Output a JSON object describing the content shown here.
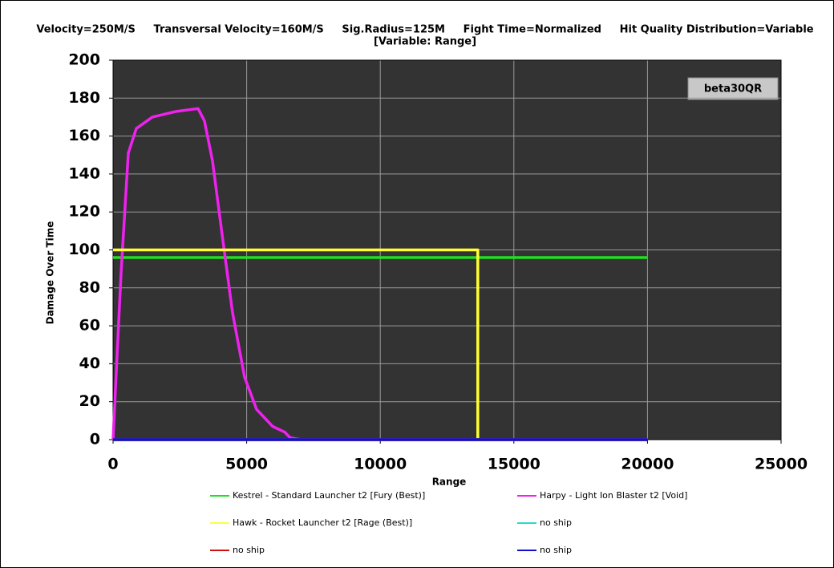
{
  "chart_data": {
    "type": "line",
    "title": "Velocity=250M/S     Transversal Velocity=160M/S     Sig.Radius=125M     Fight Time=Normalized     Hit Quality Distribution=Variable",
    "subtitle": "[Variable: Range]",
    "annotation": "beta30QR",
    "x_label": "Range",
    "y_label": "Damage Over Time",
    "xlim": [
      0,
      25000
    ],
    "ylim": [
      0,
      200
    ],
    "xticks": [
      0,
      5000,
      10000,
      15000,
      20000,
      25000
    ],
    "yticks": [
      0,
      20,
      40,
      60,
      80,
      100,
      120,
      140,
      160,
      180,
      200
    ],
    "grid": true,
    "series": [
      {
        "name": "Kestrel - Standard Launcher t2 [Fury (Best)]",
        "color": "#22dd22",
        "x": [
          0,
          20000
        ],
        "values": [
          96,
          96
        ]
      },
      {
        "name": "Harpy - Light Ion Blaster t2 [Void]",
        "color": "#ee22ee",
        "x": [
          0,
          100,
          300,
          570,
          870,
          1470,
          2370,
          3180,
          3420,
          3720,
          4110,
          4470,
          4920,
          5370,
          5970,
          6270,
          6420,
          6630,
          7020,
          20000
        ],
        "values": [
          0,
          30,
          88,
          151,
          164,
          170,
          173,
          174.5,
          168,
          147,
          105,
          67,
          33,
          16,
          7,
          5,
          4,
          1,
          0,
          0
        ]
      },
      {
        "name": "Hawk - Rocket Launcher t2 [Rage (Best)]",
        "color": "#ffff33",
        "x": [
          0,
          13650,
          13650
        ],
        "values": [
          100,
          100,
          0
        ]
      },
      {
        "name": "no ship",
        "color": "#22ddcc",
        "x": [
          0,
          20000
        ],
        "values": [
          0,
          0
        ]
      },
      {
        "name": "no ship",
        "color": "#cc1111",
        "x": [
          0,
          20000
        ],
        "values": [
          0,
          0
        ]
      },
      {
        "name": "no ship",
        "color": "#1111cc",
        "x": [
          0,
          20000
        ],
        "values": [
          0,
          0
        ]
      }
    ]
  }
}
